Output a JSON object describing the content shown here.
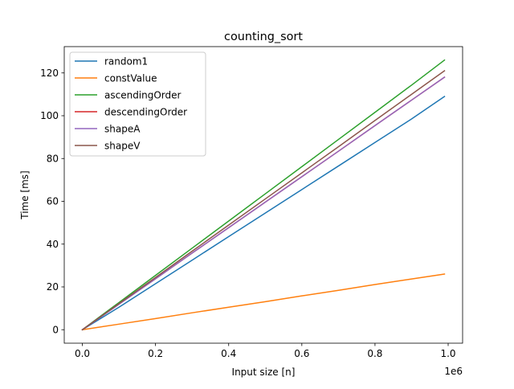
{
  "chart_data": {
    "type": "line",
    "title": "counting_sort",
    "xlabel": "Input size [n]",
    "ylabel": "Time [ms]",
    "x_offset_label": "1e6",
    "xlim": [
      -0.0495,
      1.0395
    ],
    "ylim": [
      -6.3,
      132.3
    ],
    "x_ticks": [
      0.0,
      0.2,
      0.4,
      0.6,
      0.8,
      1.0
    ],
    "x_tick_labels": [
      "0.0",
      "0.2",
      "0.4",
      "0.6",
      "0.8",
      "1.0"
    ],
    "y_ticks": [
      0,
      20,
      40,
      60,
      80,
      100,
      120
    ],
    "y_tick_labels": [
      "0",
      "20",
      "40",
      "60",
      "80",
      "100",
      "120"
    ],
    "grid": false,
    "legend_position": "upper-left",
    "x": [
      0.0,
      0.1,
      0.2,
      0.3,
      0.4,
      0.5,
      0.6,
      0.7,
      0.8,
      0.9,
      0.99
    ],
    "series": [
      {
        "name": "random1",
        "color": "#1f77b4",
        "values": [
          0,
          10.5,
          21.5,
          32.5,
          43.5,
          54.5,
          65.5,
          76.5,
          87.5,
          98.5,
          109
        ]
      },
      {
        "name": "constValue",
        "color": "#ff7f0e",
        "values": [
          0,
          2.6,
          5.2,
          7.9,
          10.5,
          13.1,
          15.8,
          18.4,
          21.1,
          23.7,
          26
        ]
      },
      {
        "name": "ascendingOrder",
        "color": "#2ca02c",
        "values": [
          0,
          12.7,
          25.4,
          38.1,
          50.8,
          63.5,
          76.2,
          88.9,
          101.6,
          114.3,
          126
        ]
      },
      {
        "name": "descendingOrder",
        "color": "#d62728",
        "values": [
          0,
          11.9,
          23.8,
          35.8,
          47.7,
          59.6,
          71.5,
          83.4,
          95.4,
          107.3,
          118
        ]
      },
      {
        "name": "shapeA",
        "color": "#9467bd",
        "values": [
          0,
          11.9,
          23.8,
          35.8,
          47.7,
          59.6,
          71.5,
          83.4,
          95.4,
          107.3,
          118
        ]
      },
      {
        "name": "shapeV",
        "color": "#8c564b",
        "values": [
          0,
          12.2,
          24.4,
          36.7,
          48.9,
          61.1,
          73.3,
          85.5,
          97.8,
          110.0,
          121
        ]
      }
    ]
  }
}
